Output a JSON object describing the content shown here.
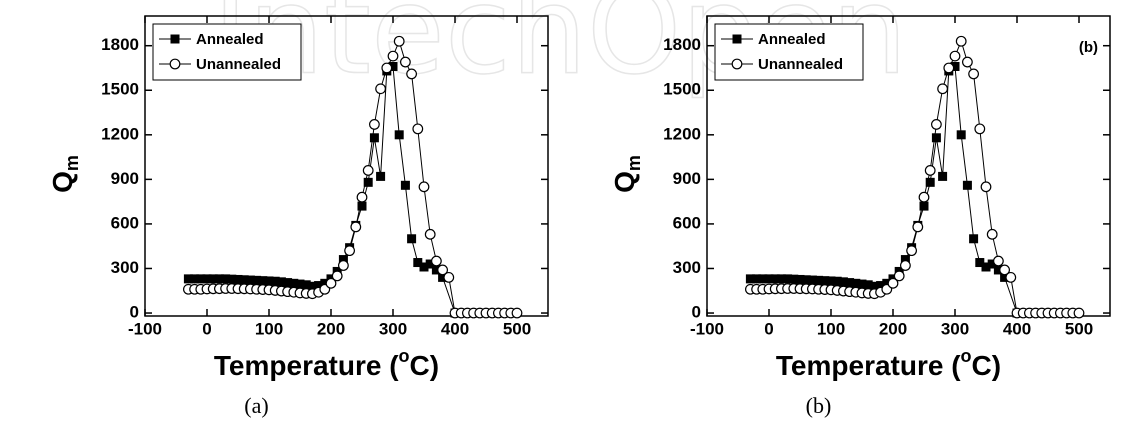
{
  "watermark": "IntechOpen",
  "chart_data": [
    {
      "type": "line",
      "caption": "(a)",
      "x_label": {
        "before": "Temperature (",
        "superscript": "o",
        "after": "C)"
      },
      "y_label": {
        "text": "Q",
        "subscript": "m"
      },
      "xlim": [
        -100,
        550
      ],
      "ylim": [
        -20,
        2000
      ],
      "xticks": [
        -100,
        0,
        100,
        200,
        300,
        400,
        500
      ],
      "yticks": [
        0,
        300,
        600,
        900,
        1200,
        1500,
        1800
      ],
      "legend": "upper left",
      "series": [
        {
          "name": "Annealed",
          "marker": "square",
          "color": "#000000",
          "x": [
            -30,
            -20,
            -10,
            0,
            10,
            20,
            30,
            40,
            50,
            60,
            70,
            80,
            90,
            100,
            110,
            120,
            130,
            140,
            150,
            160,
            170,
            180,
            190,
            200,
            210,
            220,
            230,
            240,
            250,
            260,
            270,
            280,
            290,
            300,
            310,
            320,
            330,
            340,
            350,
            360,
            370,
            380,
            400
          ],
          "values": [
            230,
            230,
            230,
            230,
            230,
            230,
            230,
            228,
            226,
            224,
            222,
            220,
            218,
            216,
            214,
            210,
            205,
            200,
            195,
            190,
            180,
            185,
            200,
            230,
            280,
            360,
            440,
            590,
            720,
            880,
            1180,
            920,
            1630,
            1660,
            1200,
            860,
            500,
            340,
            310,
            330,
            290,
            240,
            0
          ]
        },
        {
          "name": "Unannealed",
          "marker": "circle",
          "color": "#000000",
          "x": [
            -30,
            -20,
            -10,
            0,
            10,
            20,
            30,
            40,
            50,
            60,
            70,
            80,
            90,
            100,
            110,
            120,
            130,
            140,
            150,
            160,
            170,
            180,
            190,
            200,
            210,
            220,
            230,
            240,
            250,
            260,
            270,
            280,
            290,
            300,
            310,
            320,
            330,
            340,
            350,
            360,
            370,
            380,
            390,
            400,
            410,
            420,
            430,
            440,
            450,
            460,
            470,
            480,
            490,
            500
          ],
          "values": [
            160,
            160,
            160,
            162,
            163,
            164,
            165,
            165,
            164,
            163,
            162,
            160,
            158,
            156,
            152,
            148,
            144,
            140,
            135,
            132,
            130,
            140,
            160,
            200,
            250,
            320,
            420,
            580,
            780,
            960,
            1270,
            1510,
            1650,
            1730,
            1830,
            1690,
            1610,
            1240,
            850,
            530,
            350,
            290,
            240,
            0,
            0,
            0,
            0,
            0,
            0,
            0,
            0,
            0,
            0,
            0
          ]
        }
      ]
    },
    {
      "type": "line",
      "caption": "(b)",
      "annotation": "(b)",
      "x_label": {
        "before": "Temperature (",
        "superscript": "o",
        "after": "C)"
      },
      "y_label": {
        "text": "Q",
        "subscript": "m"
      },
      "xlim": [
        -100,
        550
      ],
      "ylim": [
        -20,
        2000
      ],
      "xticks": [
        -100,
        0,
        100,
        200,
        300,
        400,
        500
      ],
      "yticks": [
        0,
        300,
        600,
        900,
        1200,
        1500,
        1800
      ],
      "legend": "upper left",
      "series": [
        {
          "name": "Annealed",
          "marker": "square",
          "color": "#000000",
          "x": [
            -30,
            -20,
            -10,
            0,
            10,
            20,
            30,
            40,
            50,
            60,
            70,
            80,
            90,
            100,
            110,
            120,
            130,
            140,
            150,
            160,
            170,
            180,
            190,
            200,
            210,
            220,
            230,
            240,
            250,
            260,
            270,
            280,
            290,
            300,
            310,
            320,
            330,
            340,
            350,
            360,
            370,
            380,
            400
          ],
          "values": [
            230,
            230,
            230,
            230,
            230,
            230,
            230,
            228,
            226,
            224,
            222,
            220,
            218,
            216,
            214,
            210,
            205,
            200,
            195,
            190,
            180,
            185,
            200,
            230,
            280,
            360,
            440,
            590,
            720,
            880,
            1180,
            920,
            1630,
            1660,
            1200,
            860,
            500,
            340,
            310,
            330,
            290,
            240,
            0
          ]
        },
        {
          "name": "Unannealed",
          "marker": "circle",
          "color": "#000000",
          "x": [
            -30,
            -20,
            -10,
            0,
            10,
            20,
            30,
            40,
            50,
            60,
            70,
            80,
            90,
            100,
            110,
            120,
            130,
            140,
            150,
            160,
            170,
            180,
            190,
            200,
            210,
            220,
            230,
            240,
            250,
            260,
            270,
            280,
            290,
            300,
            310,
            320,
            330,
            340,
            350,
            360,
            370,
            380,
            390,
            400,
            410,
            420,
            430,
            440,
            450,
            460,
            470,
            480,
            490,
            500
          ],
          "values": [
            160,
            160,
            160,
            162,
            163,
            164,
            165,
            165,
            164,
            163,
            162,
            160,
            158,
            156,
            152,
            148,
            144,
            140,
            135,
            132,
            130,
            140,
            160,
            200,
            250,
            320,
            420,
            580,
            780,
            960,
            1270,
            1510,
            1650,
            1730,
            1830,
            1690,
            1610,
            1240,
            850,
            530,
            350,
            290,
            240,
            0,
            0,
            0,
            0,
            0,
            0,
            0,
            0,
            0,
            0,
            0
          ]
        }
      ]
    }
  ]
}
